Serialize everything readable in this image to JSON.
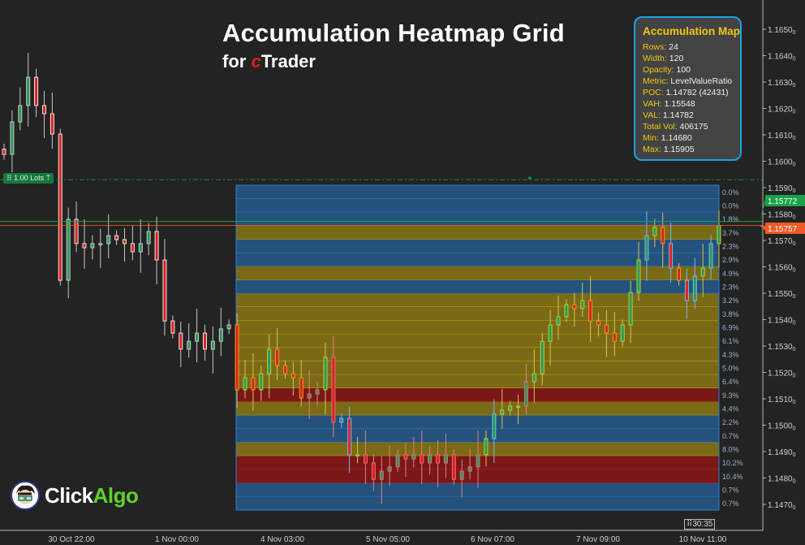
{
  "header": {
    "title": "Accumulation Heatmap Grid",
    "subtitle_prefix": "for ",
    "subtitle_c": "c",
    "subtitle_rest": "Trader"
  },
  "info_box": {
    "title": "Accumulation Map",
    "rows": [
      {
        "key": "Rows:",
        "value": "24"
      },
      {
        "key": "Width:",
        "value": "120"
      },
      {
        "key": "Opacity:",
        "value": "100"
      },
      {
        "key": "Metric:",
        "value": "LevelValueRatio"
      },
      {
        "key": "POC:",
        "value": "1.14782 (42431)"
      },
      {
        "key": "VAH:",
        "value": "1.15548"
      },
      {
        "key": "VAL:",
        "value": "1.14782"
      },
      {
        "key": "Total Vol:",
        "value": "406175"
      },
      {
        "key": "Min:",
        "value": "1.14680"
      },
      {
        "key": "Max:",
        "value": "1.15905"
      }
    ]
  },
  "lots_label": "1.00 Lots",
  "logo": {
    "part1": "Click",
    "part2": "Algo"
  },
  "timer": "30:35",
  "colors": {
    "blue": "#24527c",
    "gold": "#7a6a16",
    "red": "#7a1818",
    "bid_line": "#1aa34a",
    "ask_line": "#f05a28",
    "accent": "#19a3e0"
  },
  "price_labels": {
    "bid": "1.15772",
    "ask": "1.15757"
  },
  "chart_data": {
    "type": "candlestick-heatmap",
    "y_axis": {
      "ticks": [
        "1.16500",
        "1.16400",
        "1.16300",
        "1.16200",
        "1.16100",
        "1.16000",
        "1.15900",
        "1.15800",
        "1.15700",
        "1.15600",
        "1.15500",
        "1.15400",
        "1.15300",
        "1.15200",
        "1.15100",
        "1.15000",
        "1.14900",
        "1.14800",
        "1.14700"
      ],
      "range": [
        1.1463,
        1.1661
      ]
    },
    "x_axis": {
      "ticks": [
        "30 Oct 22:00",
        "1 Nov 00:00",
        "4 Nov 03:00",
        "5 Nov 05:00",
        "6 Nov 07:00",
        "7 Nov 09:00",
        "10 Nov 11:00"
      ]
    },
    "heatmap": {
      "min": 1.1468,
      "max": 1.15905,
      "levels": [
        {
          "pct": "0.0%",
          "zone": "blue"
        },
        {
          "pct": "0.0%",
          "zone": "blue"
        },
        {
          "pct": "1.8%",
          "zone": "blue"
        },
        {
          "pct": "3.7%",
          "zone": "gold"
        },
        {
          "pct": "2.3%",
          "zone": "blue"
        },
        {
          "pct": "2.9%",
          "zone": "blue"
        },
        {
          "pct": "4.9%",
          "zone": "gold"
        },
        {
          "pct": "2.3%",
          "zone": "blue"
        },
        {
          "pct": "3.2%",
          "zone": "gold"
        },
        {
          "pct": "3.8%",
          "zone": "gold"
        },
        {
          "pct": "6.9%",
          "zone": "gold"
        },
        {
          "pct": "6.1%",
          "zone": "gold"
        },
        {
          "pct": "4.3%",
          "zone": "gold"
        },
        {
          "pct": "5.0%",
          "zone": "gold"
        },
        {
          "pct": "6.4%",
          "zone": "gold"
        },
        {
          "pct": "9.3%",
          "zone": "red"
        },
        {
          "pct": "4.4%",
          "zone": "gold"
        },
        {
          "pct": "2.2%",
          "zone": "blue"
        },
        {
          "pct": "0.7%",
          "zone": "blue"
        },
        {
          "pct": "8.0%",
          "zone": "gold"
        },
        {
          "pct": "10.2%",
          "zone": "red"
        },
        {
          "pct": "10.4%",
          "zone": "red"
        },
        {
          "pct": "0.7%",
          "zone": "blue"
        },
        {
          "pct": "0.7%",
          "zone": "blue"
        }
      ]
    },
    "closes": [
      1.16026,
      1.16149,
      1.16211,
      1.16318,
      1.16211,
      1.1618,
      1.16103,
      1.15549,
      1.1578,
      1.15688,
      1.15672,
      1.15688,
      1.15688,
      1.15718,
      1.15703,
      1.15688,
      1.15657,
      1.15688,
      1.15734,
      1.15626,
      1.15395,
      1.15349,
      1.15288,
      1.15318,
      1.15349,
      1.15288,
      1.15318,
      1.15365,
      1.1538,
      1.15134,
      1.1518,
      1.15134,
      1.15195,
      1.15288,
      1.15226,
      1.15195,
      1.1518,
      1.15103,
      1.15118,
      1.15134,
      1.15257,
      1.15011,
      1.15026,
      1.14888,
      1.14888,
      1.14857,
      1.14795,
      1.14826,
      1.14842,
      1.14888,
      1.14872,
      1.14888,
      1.14857,
      1.14888,
      1.14857,
      1.14888,
      1.14795,
      1.14826,
      1.14842,
      1.14888,
      1.14949,
      1.15042,
      1.15057,
      1.15072,
      1.15072,
      1.15165,
      1.15195,
      1.15318,
      1.1538,
      1.15411,
      1.15457,
      1.15442,
      1.15472,
      1.15395,
      1.1538,
      1.15349,
      1.15318,
      1.1538,
      1.15503,
      1.15626,
      1.15718,
      1.15749,
      1.15688,
      1.15595,
      1.15549,
      1.15472,
      1.15565,
      1.15595,
      1.15688,
      1.15757
    ],
    "bid_price": 1.15772,
    "ask_price": 1.15757,
    "order_price": 1.1593
  }
}
